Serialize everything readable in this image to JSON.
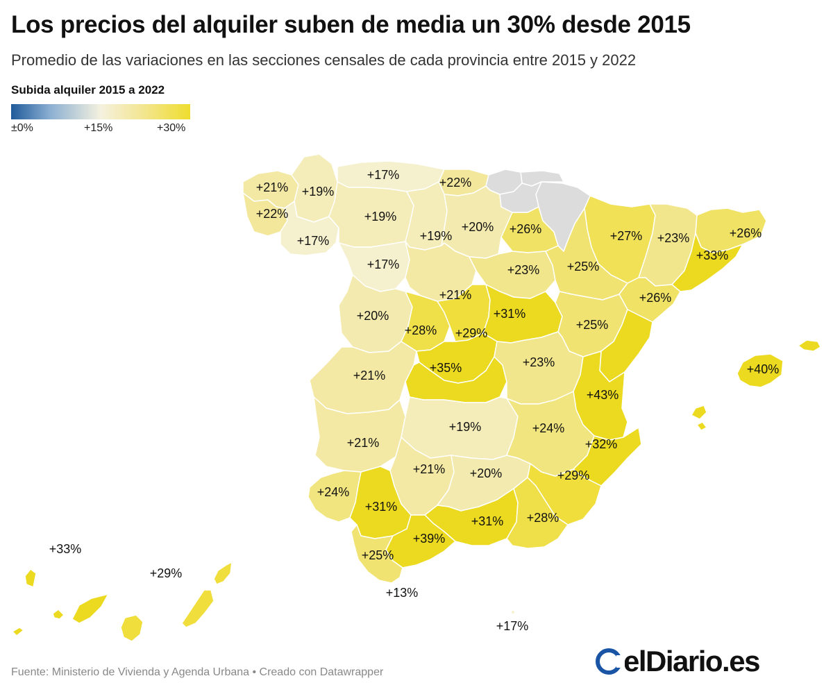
{
  "header": {
    "title": "Los precios del alquiler suben de media un 30% desde 2015",
    "subtitle": "Promedio de las variaciones en las secciones censales de cada provincia entre 2015 y 2022"
  },
  "legend": {
    "title": "Subida alquiler 2015 a 2022",
    "ticks": [
      "±0%",
      "+15%",
      "+30%"
    ],
    "colors": [
      "#1f5a9a",
      "#f4f1df",
      "#eedd2e"
    ]
  },
  "colors": {
    "no_data": "#dcdcdc",
    "border": "#ffffff"
  },
  "regions": [
    {
      "name": "A Coruña",
      "label": "+21%",
      "value": 21
    },
    {
      "name": "Lugo",
      "label": "+19%",
      "value": 19
    },
    {
      "name": "Pontevedra",
      "label": "+22%",
      "value": 22
    },
    {
      "name": "Ourense",
      "label": "+17%",
      "value": 17
    },
    {
      "name": "Asturias",
      "label": "+17%",
      "value": 17
    },
    {
      "name": "Cantabria",
      "label": "+22%",
      "value": 22
    },
    {
      "name": "León",
      "label": "+19%",
      "value": 19
    },
    {
      "name": "Zamora",
      "label": "+17%",
      "value": 17
    },
    {
      "name": "Palencia",
      "label": "+19%",
      "value": 19
    },
    {
      "name": "Burgos",
      "label": "+20%",
      "value": 20
    },
    {
      "name": "La Rioja",
      "label": "+26%",
      "value": 26
    },
    {
      "name": "Huesca",
      "label": "+27%",
      "value": 27
    },
    {
      "name": "Lleida",
      "label": "+23%",
      "value": 23
    },
    {
      "name": "Girona",
      "label": "+26%",
      "value": 26
    },
    {
      "name": "Barcelona",
      "label": "+33%",
      "value": 33
    },
    {
      "name": "Valladolid",
      "label": "+21%",
      "value": 21
    },
    {
      "name": "Soria",
      "label": "+23%",
      "value": 23
    },
    {
      "name": "Zaragoza",
      "label": "+25%",
      "value": 25
    },
    {
      "name": "Tarragona",
      "label": "+26%",
      "value": 26
    },
    {
      "name": "Salamanca",
      "label": "+20%",
      "value": 20
    },
    {
      "name": "Ávila",
      "label": "+28%",
      "value": 28
    },
    {
      "name": "Segovia",
      "label": "+29%",
      "value": 29
    },
    {
      "name": "Guadalajara",
      "label": "+31%",
      "value": 31
    },
    {
      "name": "Teruel",
      "label": "+25%",
      "value": 25
    },
    {
      "name": "Castellón",
      "label": "",
      "value": 34
    },
    {
      "name": "Cáceres",
      "label": "+21%",
      "value": 21
    },
    {
      "name": "Madrid",
      "label": "+35%",
      "value": 35
    },
    {
      "name": "Toledo",
      "label": "",
      "value": 33
    },
    {
      "name": "Cuenca",
      "label": "+23%",
      "value": 23
    },
    {
      "name": "Valencia",
      "label": "+43%",
      "value": 43
    },
    {
      "name": "Badajoz",
      "label": "+21%",
      "value": 21
    },
    {
      "name": "Ciudad Real",
      "label": "+19%",
      "value": 19
    },
    {
      "name": "Albacete",
      "label": "+24%",
      "value": 24
    },
    {
      "name": "Alicante",
      "label": "+32%",
      "value": 32
    },
    {
      "name": "Córdoba",
      "label": "+21%",
      "value": 21
    },
    {
      "name": "Jaén",
      "label": "+20%",
      "value": 20
    },
    {
      "name": "Murcia",
      "label": "+29%",
      "value": 29
    },
    {
      "name": "Huelva",
      "label": "+24%",
      "value": 24
    },
    {
      "name": "Sevilla",
      "label": "+31%",
      "value": 31
    },
    {
      "name": "Granada",
      "label": "+31%",
      "value": 31
    },
    {
      "name": "Almería",
      "label": "+28%",
      "value": 28
    },
    {
      "name": "Málaga",
      "label": "+39%",
      "value": 39
    },
    {
      "name": "Cádiz",
      "label": "+25%",
      "value": 25
    },
    {
      "name": "Ceuta",
      "label": "+13%",
      "value": 13
    },
    {
      "name": "Melilla",
      "label": "+17%",
      "value": 17
    },
    {
      "name": "Baleares",
      "label": "+40%",
      "value": 40
    },
    {
      "name": "Santa Cruz de Tenerife",
      "label": "+33%",
      "value": 33
    },
    {
      "name": "Las Palmas",
      "label": "+29%",
      "value": 29
    },
    {
      "name": "Navarra",
      "label": "",
      "value": null
    },
    {
      "name": "Gipuzkoa",
      "label": "",
      "value": null
    },
    {
      "name": "Bizkaia",
      "label": "",
      "value": null
    },
    {
      "name": "Araba",
      "label": "",
      "value": null
    }
  ],
  "footer": {
    "source": "Fuente: Ministerio de Vivienda y Agenda Urbana • Creado con Datawrapper",
    "logo": "elDiario.es"
  }
}
